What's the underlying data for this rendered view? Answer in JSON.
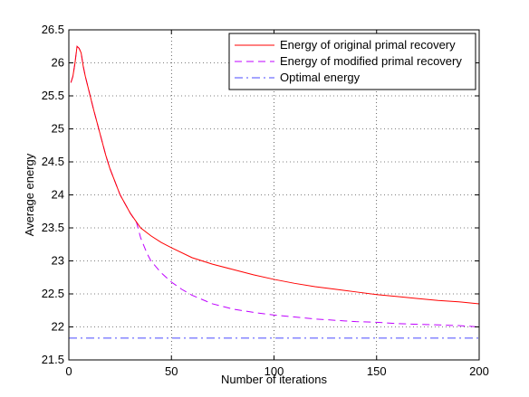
{
  "chart_data": {
    "type": "line",
    "title": "",
    "xlabel": "Number of iterations",
    "ylabel": "Average energy",
    "xlim": [
      0,
      200
    ],
    "ylim": [
      21.5,
      26.5
    ],
    "xticks": [
      0,
      50,
      100,
      150,
      200
    ],
    "yticks": [
      21.5,
      22,
      22.5,
      23,
      23.5,
      24,
      24.5,
      25,
      25.5,
      26,
      26.5
    ],
    "grid": true,
    "legend_position": "top-right",
    "series": [
      {
        "name": "Energy of original primal recovery",
        "color": "#ff0000",
        "style": "solid",
        "x": [
          1,
          2,
          3,
          4,
          5,
          6,
          7,
          8,
          10,
          12,
          15,
          18,
          20,
          25,
          30,
          35,
          40,
          45,
          50,
          60,
          70,
          80,
          90,
          100,
          110,
          120,
          130,
          140,
          150,
          160,
          170,
          180,
          190,
          200
        ],
        "y": [
          25.7,
          25.8,
          26.0,
          26.25,
          26.22,
          26.15,
          25.95,
          25.8,
          25.55,
          25.3,
          24.95,
          24.6,
          24.4,
          24.0,
          23.72,
          23.5,
          23.38,
          23.28,
          23.2,
          23.05,
          22.95,
          22.87,
          22.79,
          22.72,
          22.66,
          22.61,
          22.57,
          22.53,
          22.49,
          22.46,
          22.43,
          22.4,
          22.38,
          22.35
        ]
      },
      {
        "name": "Energy of modified primal recovery",
        "color": "#bf00ff",
        "style": "dashed",
        "x": [
          1,
          2,
          3,
          4,
          5,
          6,
          7,
          8,
          10,
          12,
          15,
          18,
          20,
          25,
          30,
          33,
          35,
          38,
          40,
          45,
          50,
          55,
          60,
          70,
          80,
          90,
          100,
          110,
          120,
          130,
          140,
          150,
          160,
          170,
          180,
          190,
          200
        ],
        "y": [
          25.7,
          25.8,
          26.0,
          26.25,
          26.22,
          26.15,
          25.95,
          25.8,
          25.55,
          25.3,
          24.95,
          24.6,
          24.4,
          24.0,
          23.72,
          23.58,
          23.35,
          23.12,
          23.0,
          22.82,
          22.68,
          22.57,
          22.48,
          22.35,
          22.27,
          22.22,
          22.18,
          22.15,
          22.12,
          22.1,
          22.08,
          22.07,
          22.05,
          22.04,
          22.03,
          22.02,
          22.0
        ]
      },
      {
        "name": "Optimal energy",
        "color": "#4a4aff",
        "style": "dashdot",
        "x": [
          0,
          200
        ],
        "y": [
          21.83,
          21.83
        ]
      }
    ]
  }
}
